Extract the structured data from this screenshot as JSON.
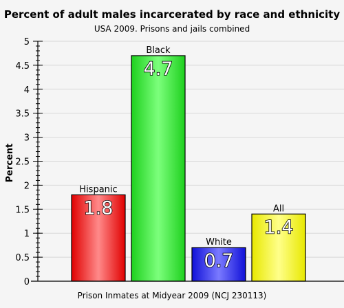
{
  "chart_data": {
    "type": "bar",
    "title": "Percent of adult males incarcerated by race and ethnicity",
    "subtitle": "USA 2009. Prisons and jails combined",
    "xlabel": "Prison Inmates at Midyear 2009 (NCJ 230113)",
    "ylabel": "Percent",
    "categories": [
      "Hispanic",
      "Black",
      "White",
      "All"
    ],
    "values": [
      1.8,
      4.7,
      0.7,
      1.4
    ],
    "value_labels": [
      "1.8",
      "4.7",
      "0.7",
      "1.4"
    ],
    "bar_colors": [
      "#ff2020",
      "#22e022",
      "#2222ee",
      "#eeee22"
    ],
    "ylim": [
      0,
      5
    ],
    "y_ticks": [
      0,
      0.5,
      1,
      1.5,
      2,
      2.5,
      3,
      3.5,
      4,
      4.5,
      5
    ],
    "y_tick_labels": [
      "0",
      "0.5",
      "1",
      "1.5",
      "2",
      "2.5",
      "3",
      "3.5",
      "4",
      "4.5",
      "5"
    ],
    "grid": true
  }
}
